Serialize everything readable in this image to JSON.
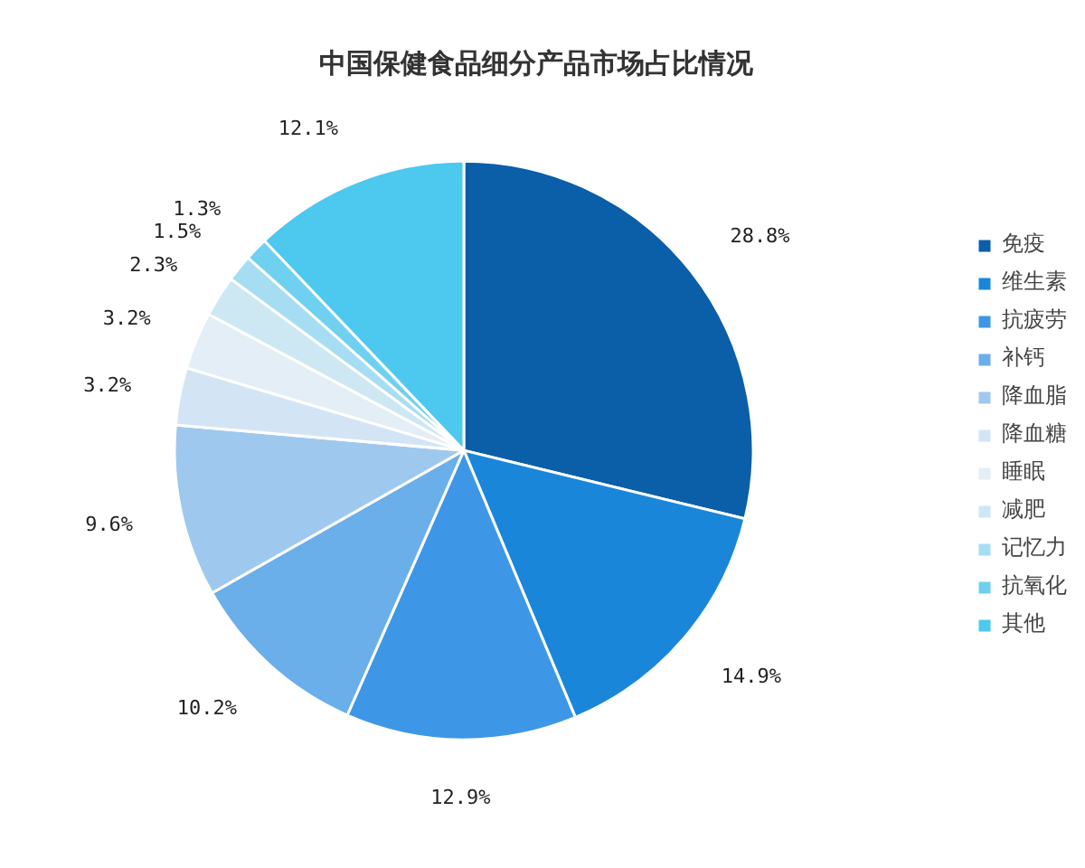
{
  "chart_data": {
    "type": "pie",
    "title": "中国保健食品细分产品市场占比情况",
    "categories": [
      "免疫",
      "维生素",
      "抗疲劳",
      "补钙",
      "降血脂",
      "降血糖",
      "睡眠",
      "减肥",
      "记忆力",
      "抗氧化",
      "其他"
    ],
    "values": [
      28.8,
      14.9,
      12.9,
      10.2,
      9.6,
      3.2,
      3.2,
      2.3,
      1.5,
      1.3,
      12.1
    ],
    "value_labels": [
      "28.8%",
      "14.9%",
      "12.9%",
      "10.2%",
      "9.6%",
      "3.2%",
      "3.2%",
      "2.3%",
      "1.5%",
      "1.3%",
      "12.1%"
    ],
    "colors": [
      "#0b5ea8",
      "#1a86d9",
      "#3d97e6",
      "#6aaeea",
      "#9fc8ee",
      "#d3e5f5",
      "#e4eef6",
      "#cde8f2",
      "#a6ddf2",
      "#6fd0ef",
      "#4dc8ef"
    ],
    "legend": "right"
  }
}
